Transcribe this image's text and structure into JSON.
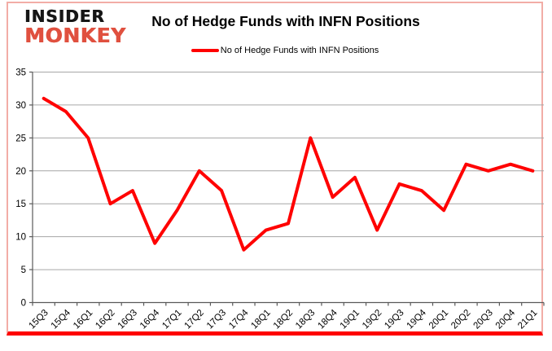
{
  "logo": {
    "line1": "INSIDER",
    "line2": "MONKEY"
  },
  "title": "No of Hedge Funds with INFN Positions",
  "legend": {
    "label": "No of Hedge Funds with INFN Positions",
    "line_color": "#ff0000"
  },
  "colors": {
    "series_red": "#ff0000",
    "logo_red": "#e0503f",
    "frame_side_pink": "#f2ada6",
    "frame_bottom_red": "#fe0000",
    "gridline_gray": "#a6a6a6",
    "axis_gray": "#595959",
    "text_black": "#000000"
  },
  "chart_data": {
    "type": "line",
    "title": "No of Hedge Funds with INFN Positions",
    "categories": [
      "15Q3",
      "15Q4",
      "16Q1",
      "16Q2",
      "16Q3",
      "16Q4",
      "17Q1",
      "17Q2",
      "17Q3",
      "17Q4",
      "18Q1",
      "18Q2",
      "18Q3",
      "18Q4",
      "19Q1",
      "19Q2",
      "19Q3",
      "19Q4",
      "20Q1",
      "20Q2",
      "20Q3",
      "20Q4",
      "21Q1"
    ],
    "series": [
      {
        "name": "No of Hedge Funds with INFN Positions",
        "color": "#ff0000",
        "values": [
          31,
          29,
          25,
          15,
          17,
          9,
          14,
          20,
          17,
          8,
          11,
          12,
          25,
          16,
          19,
          11,
          18,
          17,
          14,
          21,
          20,
          21,
          20
        ]
      }
    ],
    "xlabel": "",
    "ylabel": "",
    "ylim": [
      0,
      35
    ],
    "yticks": [
      0,
      5,
      10,
      15,
      20,
      25,
      30,
      35
    ],
    "grid": true,
    "legend_position": "top-center"
  }
}
